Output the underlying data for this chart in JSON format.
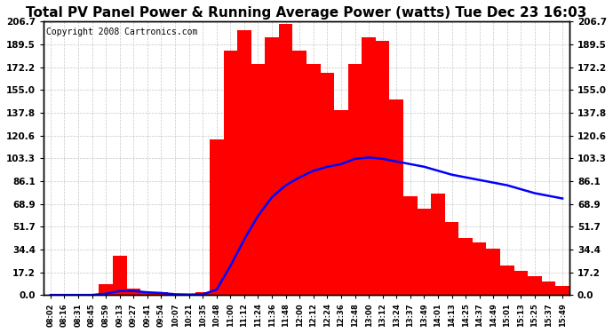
{
  "title": "Total PV Panel Power & Running Average Power (watts) Tue Dec 23 16:03",
  "copyright": "Copyright 2008 Cartronics.com",
  "y_ticks": [
    0.0,
    17.2,
    34.4,
    51.7,
    68.9,
    86.1,
    103.3,
    120.6,
    137.8,
    155.0,
    172.2,
    189.5,
    206.7
  ],
  "ymax": 206.7,
  "ymin": 0.0,
  "background_color": "#ffffff",
  "bar_color": "#ff0000",
  "line_color": "#0000ff",
  "grid_color": "#c8c8c8",
  "x_labels": [
    "08:02",
    "08:16",
    "08:31",
    "08:45",
    "08:59",
    "09:13",
    "09:27",
    "09:41",
    "09:54",
    "10:07",
    "10:21",
    "10:35",
    "10:48",
    "11:00",
    "11:12",
    "11:24",
    "11:36",
    "11:48",
    "12:00",
    "12:12",
    "12:24",
    "12:36",
    "12:48",
    "13:00",
    "13:12",
    "13:24",
    "13:37",
    "13:49",
    "14:01",
    "14:13",
    "14:25",
    "14:37",
    "14:49",
    "15:01",
    "15:13",
    "15:25",
    "15:37",
    "15:49"
  ],
  "pv_power": [
    0,
    0,
    0,
    0,
    8,
    30,
    5,
    2,
    2,
    0,
    0,
    2,
    118,
    185,
    200,
    175,
    195,
    205,
    185,
    175,
    168,
    140,
    175,
    195,
    192,
    148,
    75,
    65,
    77,
    55,
    43,
    40,
    35,
    22,
    18,
    14,
    10,
    7
  ],
  "avg_power": [
    0,
    0,
    0,
    0,
    1,
    3,
    3,
    2,
    1.5,
    0.5,
    0.3,
    0.5,
    4,
    22,
    42,
    60,
    74,
    83,
    89,
    94,
    97,
    99,
    103,
    104,
    103,
    101,
    99,
    97,
    94,
    91,
    89,
    87,
    85,
    83,
    80,
    77,
    75,
    73
  ],
  "title_fontsize": 11,
  "copyright_fontsize": 7
}
